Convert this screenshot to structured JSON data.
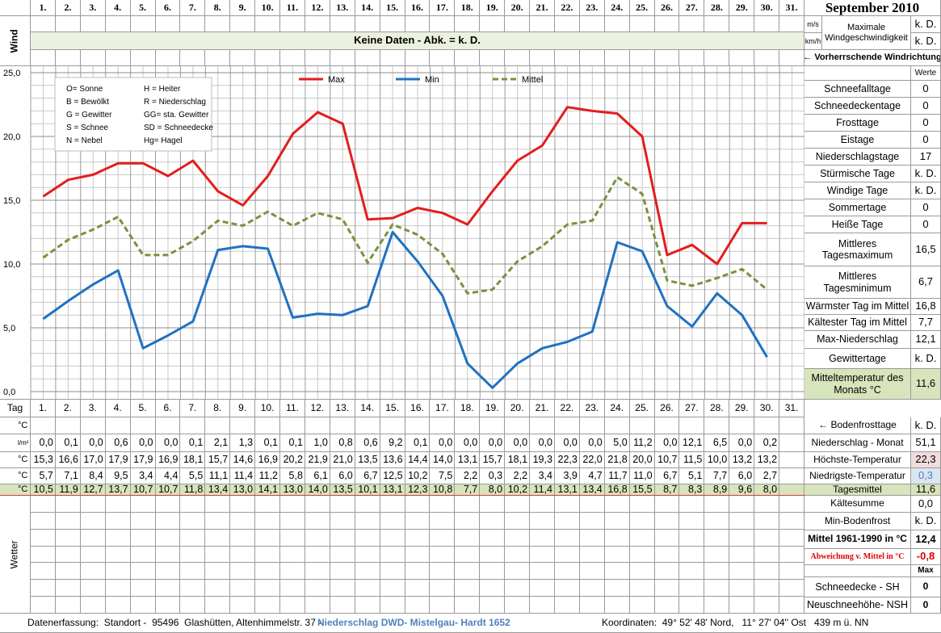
{
  "chart_data": {
    "type": "line",
    "categories": [
      "1.",
      "2.",
      "3.",
      "4.",
      "5.",
      "6.",
      "7.",
      "8.",
      "9.",
      "10.",
      "11.",
      "12.",
      "13.",
      "14.",
      "15.",
      "16.",
      "17.",
      "18.",
      "19.",
      "20.",
      "21.",
      "22.",
      "23.",
      "24.",
      "25.",
      "26.",
      "27.",
      "28.",
      "29.",
      "30.",
      "31."
    ],
    "ylim": [
      0,
      25
    ],
    "yticks": [
      {
        "value": 0,
        "label": "0,0"
      },
      {
        "value": 5,
        "label": "5,0"
      },
      {
        "value": 10,
        "label": "10,0"
      },
      {
        "value": 15,
        "label": "15,0"
      },
      {
        "value": 20,
        "label": "20,0"
      },
      {
        "value": 25,
        "label": "25,0"
      }
    ],
    "grid": true,
    "legend": "top",
    "series": [
      {
        "name": "Max",
        "color": "#e31d1d",
        "dashed": false,
        "values": [
          15.3,
          16.6,
          17.0,
          17.9,
          17.9,
          16.9,
          18.1,
          15.7,
          14.6,
          16.9,
          20.2,
          21.9,
          21.0,
          13.5,
          13.6,
          14.4,
          14.0,
          13.1,
          15.7,
          18.1,
          19.3,
          22.3,
          22.0,
          21.8,
          20.0,
          10.7,
          11.5,
          10.0,
          13.2,
          13.2,
          null
        ],
        "value_labels": [
          "15,3",
          "16,6",
          "17,0",
          "17,9",
          "17,9",
          "16,9",
          "18,1",
          "15,7",
          "14,6",
          "16,9",
          "20,2",
          "21,9",
          "21,0",
          "13,5",
          "13,6",
          "14,4",
          "14,0",
          "13,1",
          "15,7",
          "18,1",
          "19,3",
          "22,3",
          "22,0",
          "21,8",
          "20,0",
          "10,7",
          "11,5",
          "10,0",
          "13,2",
          "13,2",
          null
        ]
      },
      {
        "name": "Min",
        "color": "#1f72c0",
        "dashed": false,
        "values": [
          5.7,
          7.1,
          8.4,
          9.5,
          3.4,
          4.4,
          5.5,
          11.1,
          11.4,
          11.2,
          5.8,
          6.1,
          6.0,
          6.7,
          12.5,
          10.2,
          7.5,
          2.2,
          0.3,
          2.2,
          3.4,
          3.9,
          4.7,
          11.7,
          11.0,
          6.7,
          5.1,
          7.7,
          6.0,
          2.7,
          null
        ],
        "value_labels": [
          "5,7",
          "7,1",
          "8,4",
          "9,5",
          "3,4",
          "4,4",
          "5,5",
          "11,1",
          "11,4",
          "11,2",
          "5,8",
          "6,1",
          "6,0",
          "6,7",
          "12,5",
          "10,2",
          "7,5",
          "2,2",
          "0,3",
          "2,2",
          "3,4",
          "3,9",
          "4,7",
          "11,7",
          "11,0",
          "6,7",
          "5,1",
          "7,7",
          "6,0",
          "2,7",
          null
        ]
      },
      {
        "name": "Mittel",
        "color": "#77933c",
        "dashed": true,
        "values": [
          10.5,
          11.9,
          12.7,
          13.7,
          10.7,
          10.7,
          11.8,
          13.4,
          13.0,
          14.1,
          13.0,
          14.0,
          13.5,
          10.1,
          13.1,
          12.3,
          10.8,
          7.7,
          8.0,
          10.2,
          11.4,
          13.1,
          13.4,
          16.8,
          15.5,
          8.7,
          8.3,
          8.9,
          9.6,
          8.0,
          null
        ],
        "value_labels": [
          "10,5",
          "11,9",
          "12,7",
          "13,7",
          "10,7",
          "10,7",
          "11,8",
          "13,4",
          "13,0",
          "14,1",
          "13,0",
          "14,0",
          "13,5",
          "10,1",
          "13,1",
          "12,3",
          "10,8",
          "7,7",
          "8,0",
          "10,2",
          "11,4",
          "13,1",
          "13,4",
          "16,8",
          "15,5",
          "8,7",
          "8,3",
          "8,9",
          "9,6",
          "8,0",
          null
        ]
      }
    ]
  },
  "header": {
    "wind_label": "Wind",
    "no_data": "Keine Daten - Abk. = k. D.",
    "month": "September 2010",
    "wind_units": [
      "m/s",
      "km/h"
    ],
    "wind_speed_label": "Maximale Windgeschwindigkeit",
    "wind_speed_values": [
      "k. D.",
      "k. D."
    ],
    "wind_direction": "← Vorherrschende Windrichtung"
  },
  "weather_key": [
    [
      "O= Sonne",
      "H = Heiter"
    ],
    [
      "B = Bewölkt",
      "R = Niederschlag"
    ],
    [
      "G = Gewitter",
      "GG= sta. Gewitter"
    ],
    [
      "S = Schnee",
      "SD = Schneedecke"
    ],
    [
      "N = Nebel",
      "Hg= Hagel"
    ]
  ],
  "stats": {
    "header": "Werte",
    "rows": [
      {
        "label": "Schneefalltage",
        "value": "0"
      },
      {
        "label": "Schneedeckentage",
        "value": "0"
      },
      {
        "label": "Frosttage",
        "value": "0"
      },
      {
        "label": "Eistage",
        "value": "0"
      },
      {
        "label": "Niederschlagstage",
        "value": "17"
      },
      {
        "label": "Stürmische Tage",
        "value": "k. D."
      },
      {
        "label": "Windige Tage",
        "value": "k. D."
      },
      {
        "label": "Sommertage",
        "value": "0"
      },
      {
        "label": "Heiße Tage",
        "value": "0"
      },
      {
        "label": "Mittleres Tagesmaximum",
        "value": "16,5"
      },
      {
        "label": "Mittleres Tagesminimum",
        "value": "6,7"
      },
      {
        "label": "Wärmster Tag im Mittel",
        "value": "16,8"
      },
      {
        "label": "Kältester Tag im Mittel",
        "value": "7,7"
      },
      {
        "label": "Max-Niederschlag",
        "value": "12,1"
      },
      {
        "label": "Gewittertage",
        "value": "k. D."
      },
      {
        "label": "Mitteltemperatur des Monats °C",
        "value": "11,6"
      }
    ]
  },
  "table": {
    "day_label": "Tag",
    "units": [
      "°C",
      "l/m²",
      "°C",
      "°C",
      "°C"
    ],
    "weather_label": "Wetter",
    "precipitation": [
      "0,0",
      "0,1",
      "0,0",
      "0,6",
      "0,0",
      "0,0",
      "0,1",
      "2,1",
      "1,3",
      "0,1",
      "0,1",
      "1,0",
      "0,8",
      "0,6",
      "9,2",
      "0,1",
      "0,0",
      "0,0",
      "0,0",
      "0,0",
      "0,0",
      "0,0",
      "0,0",
      "5,0",
      "11,2",
      "0,0",
      "12,1",
      "6,5",
      "0,0",
      "0,2"
    ]
  },
  "table_stats": {
    "rows": [
      {
        "label": "← Bodenfrosttage",
        "value": "k. D."
      },
      {
        "label": "Niederschlag - Monat",
        "value": "51,1"
      },
      {
        "label": "Höchste-Temperatur",
        "value": "22,3"
      },
      {
        "label": "Niedrigste-Temperatur",
        "value": "0,3"
      },
      {
        "label": "Tagesmittel",
        "value": "11,6"
      },
      {
        "label": "Kältesumme",
        "value": "0,0"
      },
      {
        "label": "Min-Bodenfrost",
        "value": "k. D."
      },
      {
        "label": "Mittel 1961-1990 in °C",
        "value": "12,4"
      },
      {
        "label": "Abweichung v. Mittel in °C",
        "value": "-0,8"
      }
    ],
    "snow_header": "Max",
    "snow_rows": [
      {
        "label": "Schneedecke -  SH",
        "value": "0"
      },
      {
        "label": "Neuschneehöhe- NSH",
        "value": "0"
      }
    ]
  },
  "footer": {
    "left": "Datenerfassung:  Standort -  95496  Glashütten, Altenhimmelstr. 37 -",
    "station": "Niederschlag DWD- Mistelgau- Hardt 1652",
    "right": "Koordinaten:  49° 52' 48' Nord,   11° 27' 04'' Ost   439 m ü. NN"
  }
}
